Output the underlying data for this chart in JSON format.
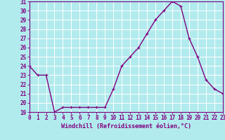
{
  "x": [
    0,
    1,
    2,
    3,
    4,
    5,
    6,
    7,
    8,
    9,
    10,
    11,
    12,
    13,
    14,
    15,
    16,
    17,
    18,
    19,
    20,
    21,
    22,
    23
  ],
  "y": [
    24,
    23,
    23,
    19,
    19.5,
    19.5,
    19.5,
    19.5,
    19.5,
    19.5,
    21.5,
    24,
    25,
    26,
    27.5,
    29,
    30,
    31,
    30.5,
    27,
    25,
    22.5,
    21.5,
    21
  ],
  "line_color": "#800080",
  "marker": "+",
  "markersize": 3,
  "linewidth": 1.0,
  "background_color": "#b2ebee",
  "grid_color": "#ffffff",
  "xlabel": "Windchill (Refroidissement éolien,°C)",
  "xlabel_color": "#800080",
  "tick_color": "#800080",
  "ylim": [
    19,
    31
  ],
  "xlim": [
    0,
    23
  ],
  "yticks": [
    19,
    20,
    21,
    22,
    23,
    24,
    25,
    26,
    27,
    28,
    29,
    30,
    31
  ],
  "xticks": [
    0,
    1,
    2,
    3,
    4,
    5,
    6,
    7,
    8,
    9,
    10,
    11,
    12,
    13,
    14,
    15,
    16,
    17,
    18,
    19,
    20,
    21,
    22,
    23
  ],
  "label_fontsize": 6,
  "tick_fontsize": 5.5
}
